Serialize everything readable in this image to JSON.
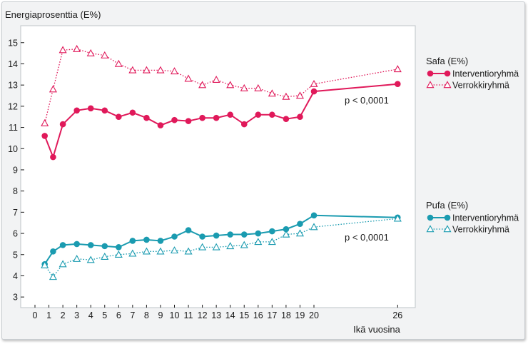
{
  "chart_data": {
    "type": "line",
    "ylabel": "Energiaprosenttia (E%)",
    "xlabel": "Ikä vuosina",
    "x_ticks": [
      0,
      1,
      2,
      3,
      4,
      5,
      6,
      7,
      8,
      9,
      10,
      11,
      12,
      13,
      14,
      15,
      16,
      17,
      18,
      19,
      20,
      26
    ],
    "y_ticks": [
      3,
      4,
      5,
      6,
      7,
      8,
      9,
      10,
      11,
      12,
      13,
      14,
      15
    ],
    "ylim": [
      2.5,
      15.8
    ],
    "grid": false,
    "legends": [
      {
        "title": "Safa (E%)",
        "entries": [
          "Interventioryhmä",
          "Verrokkiryhmä"
        ]
      },
      {
        "title": "Pufa (E%)",
        "entries": [
          "Interventioryhmä",
          "Verrokkiryhmä"
        ]
      }
    ],
    "annotations": [
      "p < 0,0001",
      "p < 0,0001"
    ],
    "colors": {
      "safa": "#e0195a",
      "pufa": "#1a9bb0"
    },
    "series": [
      {
        "group": "Safa (E%)",
        "name": "Interventioryhmä",
        "style": "solid-filled-circle",
        "x": [
          0.7,
          1.3,
          2,
          3,
          4,
          5,
          6,
          7,
          8,
          9,
          10,
          11,
          12,
          13,
          14,
          15,
          16,
          17,
          18,
          19,
          20,
          26
        ],
        "values": [
          10.6,
          9.6,
          11.15,
          11.8,
          11.9,
          11.8,
          11.5,
          11.7,
          11.45,
          11.1,
          11.35,
          11.3,
          11.45,
          11.45,
          11.6,
          11.15,
          11.6,
          11.6,
          11.4,
          11.5,
          12.7,
          13.05
        ]
      },
      {
        "group": "Safa (E%)",
        "name": "Verrokkiryhmä",
        "style": "dotted-open-triangle",
        "x": [
          0.7,
          1.3,
          2,
          3,
          4,
          5,
          6,
          7,
          8,
          9,
          10,
          11,
          12,
          13,
          14,
          15,
          16,
          17,
          18,
          19,
          20,
          26
        ],
        "values": [
          11.2,
          12.8,
          14.65,
          14.7,
          14.5,
          14.4,
          14.0,
          13.7,
          13.7,
          13.7,
          13.65,
          13.3,
          13.0,
          13.25,
          13.0,
          12.85,
          12.85,
          12.6,
          12.45,
          12.5,
          13.05,
          13.75
        ]
      },
      {
        "group": "Pufa (E%)",
        "name": "Interventioryhmä",
        "style": "solid-filled-circle",
        "x": [
          0.7,
          1.3,
          2,
          3,
          4,
          5,
          6,
          7,
          8,
          9,
          10,
          11,
          12,
          13,
          14,
          15,
          16,
          17,
          18,
          19,
          20,
          26
        ],
        "values": [
          4.55,
          5.15,
          5.45,
          5.5,
          5.45,
          5.4,
          5.35,
          5.65,
          5.7,
          5.65,
          5.85,
          6.15,
          5.85,
          5.9,
          5.95,
          5.95,
          6.0,
          6.1,
          6.2,
          6.45,
          6.85,
          6.75
        ]
      },
      {
        "group": "Pufa (E%)",
        "name": "Verrokkiryhmä",
        "style": "dotted-open-triangle",
        "x": [
          0.7,
          1.3,
          2,
          3,
          4,
          5,
          6,
          7,
          8,
          9,
          10,
          11,
          12,
          13,
          14,
          15,
          16,
          17,
          18,
          19,
          20,
          26
        ],
        "values": [
          4.5,
          3.95,
          4.55,
          4.8,
          4.75,
          4.9,
          5.0,
          5.05,
          5.15,
          5.15,
          5.2,
          5.15,
          5.35,
          5.35,
          5.4,
          5.45,
          5.6,
          5.6,
          5.95,
          6.0,
          6.3,
          6.7
        ]
      }
    ]
  }
}
